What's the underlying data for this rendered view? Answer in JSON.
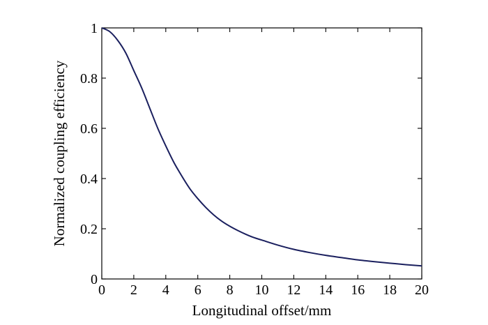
{
  "chart_data": {
    "type": "line",
    "title": "",
    "xlabel": "Longitudinal offset/mm",
    "ylabel": "Normalized coupling efficiency",
    "xlim": [
      0,
      20
    ],
    "ylim": [
      0,
      1
    ],
    "xticks": [
      0,
      2,
      4,
      6,
      8,
      10,
      12,
      14,
      16,
      18,
      20
    ],
    "yticks": [
      0,
      0.2,
      0.4,
      0.6,
      0.8,
      1
    ],
    "xtick_labels": [
      "0",
      "2",
      "4",
      "6",
      "8",
      "10",
      "12",
      "14",
      "16",
      "18",
      "20"
    ],
    "ytick_labels": [
      "0",
      "0.2",
      "0.4",
      "0.6",
      "0.8",
      "1"
    ],
    "grid": false,
    "legend": "none",
    "series_color": "#1a1f5e",
    "series": [
      {
        "x": [
          0,
          0.5,
          1,
          1.5,
          2,
          2.5,
          3,
          3.5,
          4,
          4.5,
          5,
          5.5,
          6,
          6.5,
          7,
          7.5,
          8,
          8.5,
          9,
          9.5,
          10,
          11,
          12,
          13,
          14,
          15,
          16,
          17,
          18,
          19,
          20
        ],
        "y": [
          1.0,
          0.985,
          0.95,
          0.9,
          0.83,
          0.76,
          0.68,
          0.6,
          0.53,
          0.465,
          0.41,
          0.36,
          0.32,
          0.285,
          0.255,
          0.23,
          0.21,
          0.193,
          0.178,
          0.165,
          0.155,
          0.135,
          0.118,
          0.105,
          0.094,
          0.085,
          0.076,
          0.069,
          0.063,
          0.057,
          0.052
        ]
      }
    ]
  }
}
